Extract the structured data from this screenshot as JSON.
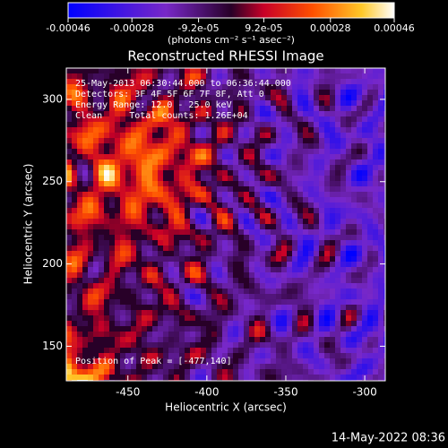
{
  "chart_data": {
    "type": "image",
    "title": "Reconstructed RHESSI Image",
    "x_label": "Heliocentric X (arcsec)",
    "y_label": "Heliocentric Y (arcsec)",
    "xlim": [
      -489,
      -287
    ],
    "ylim": [
      129,
      319
    ],
    "xticks": [
      -450,
      -400,
      -350,
      -300
    ],
    "yticks": [
      150,
      200,
      250,
      300
    ],
    "annotations": [
      "25-May-2013 06:30:44.000 to 06:36:44.000",
      "Detectors: 3F 4F 5F 6F 7F 8F, Att 0",
      "Energy Range: 12.0 - 25.0 keV",
      "Clean     Total counts: 1.26E+04"
    ],
    "peak_label": "Position of Peak = [-477,140]",
    "colorbar": {
      "label": "(photons cm⁻² s⁻¹ asec⁻²)",
      "lim": [
        -0.00046,
        0.00046
      ],
      "ticks": [
        -0.00046,
        -0.00028,
        {
          "value": -9.2e-05,
          "label": "-9.2e-05"
        },
        {
          "value": 9.2e-05,
          "label": "9.2e-05"
        },
        0.00028,
        0.00046
      ]
    },
    "footer": "14-May-2022 08:36"
  }
}
